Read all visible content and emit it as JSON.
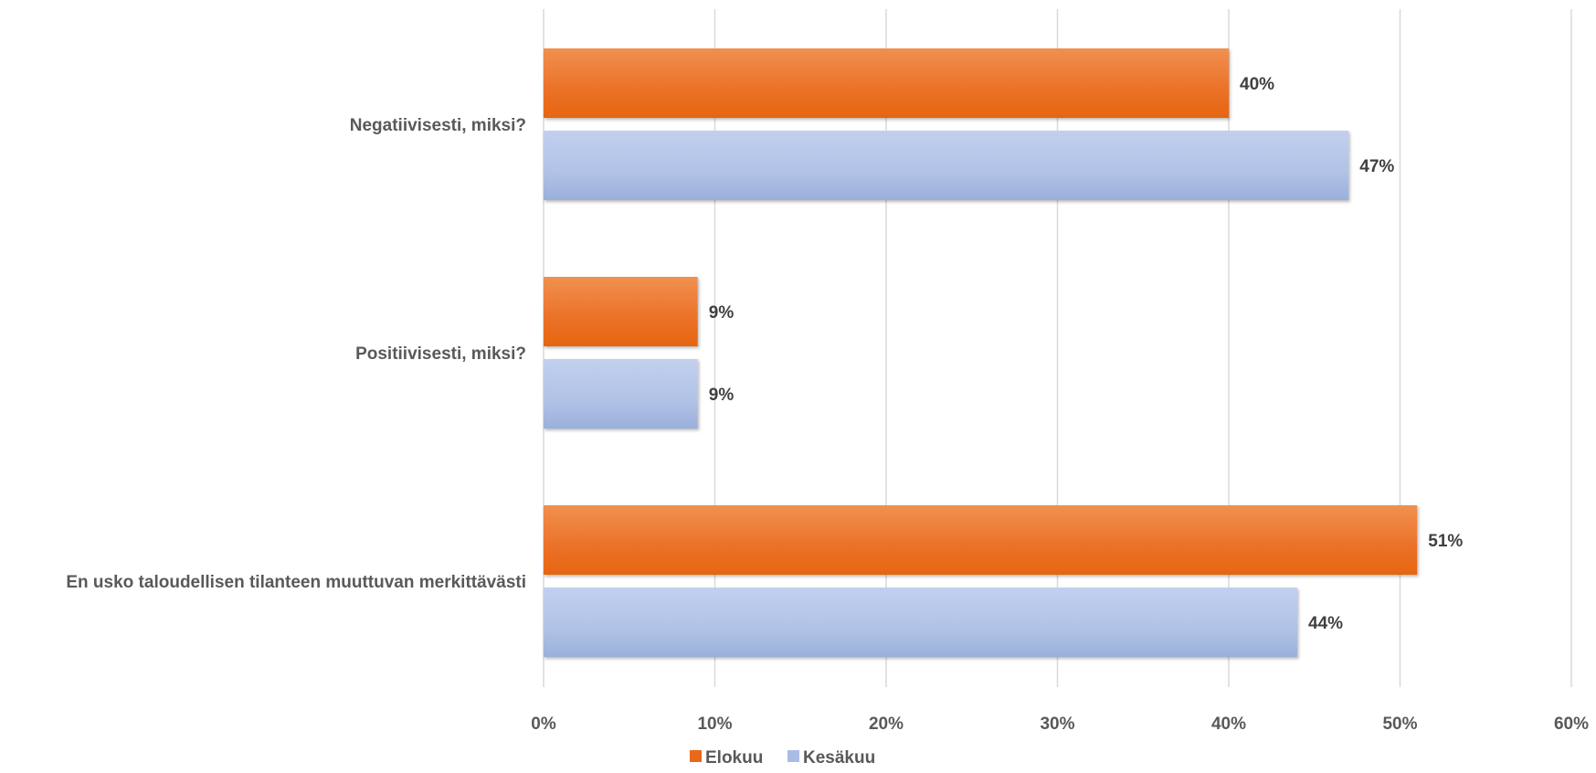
{
  "chart_data": {
    "type": "bar",
    "orientation": "horizontal",
    "categories": [
      "Negatiivisesti, miksi?",
      "Positiivisesti, miksi?",
      "En usko taloudellisen tilanteen muuttuvan merkittävästi"
    ],
    "series": [
      {
        "name": "Elokuu",
        "values": [
          40,
          9,
          51
        ],
        "labels": [
          "40%",
          "9%",
          "51%"
        ],
        "color": "#e8691a"
      },
      {
        "name": "Kesäkuu",
        "values": [
          47,
          9,
          44
        ],
        "labels": [
          "47%",
          "9%",
          "44%"
        ],
        "color": "#a9bde4"
      }
    ],
    "xlim": [
      0,
      60
    ],
    "ticks": [
      0,
      10,
      20,
      30,
      40,
      50,
      60
    ],
    "tick_labels": [
      "0%",
      "10%",
      "20%",
      "30%",
      "40%",
      "50%",
      "60%"
    ],
    "grid": true,
    "legend_position": "bottom"
  }
}
